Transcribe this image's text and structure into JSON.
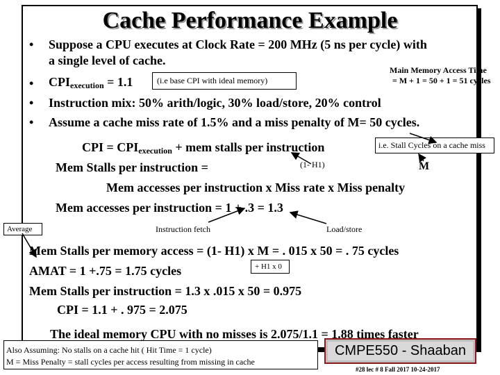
{
  "slide": {
    "title": "Cache Performance Example",
    "bullets": {
      "b1_line1": "Suppose a CPU executes at Clock Rate = 200 MHz (5 ns per cycle) with",
      "b1_line2": "a single level of cache.",
      "b2_cpi": "CPI",
      "b2_sub": "execution",
      "b2_value": "=  1.1",
      "b3": "Instruction mix:  50% arith/logic,  30% load/store, 20% control",
      "b4": "Assume a cache miss rate of 1.5% and a miss penalty of M= 50 cycles."
    },
    "bullet_char": "•",
    "note_ideal": "(i.e base CPI with ideal memory)",
    "main_memory_line1": "Main Memory Access Time",
    "main_memory_line2": "= M + 1 = 50 + 1 = 51 cycles",
    "cpi_eq": {
      "lhs": "CPI =  CPI",
      "sub": "execution",
      "rhs": " +   mem stalls per instruction"
    },
    "stall_note": "i.e. Stall Cycles on a cache miss",
    "h1_label": "(1- H1)",
    "m_label": "M",
    "mem_stalls_label": "Mem Stalls per instruction =",
    "mem_accesses_formula": "Mem accesses per instruction  x  Miss rate x Miss penalty",
    "mem_accesses_eq": "Mem accesses per instruction  =  1  +   .3   =  1.3",
    "average_label": "Average",
    "instruction_fetch": "Instruction fetch",
    "load_store": "Load/store",
    "stalls_per_access": "Mem Stalls per memory access  = (1- H1) x M = . 015 x 50  = . 75 cycles",
    "h1x0": "+ H1 x 0",
    "amat": "AMAT = 1 +.75 = 1.75 cycles",
    "stalls_per_instr": "Mem Stalls per instruction  =  1.3 x  .015 x 50  =   0.975",
    "cpi_result": "CPI =  1.1  +  . 975 =   2.075",
    "ideal_memory": "The ideal memory CPU with no misses is  2.075/1.1 =  1.88 times faster",
    "assume_line1": "Also Assuming:  No stalls on a cache hit ( Hit Time = 1 cycle)",
    "assume_line2": "M  =  Miss Penalty = stall cycles per access resulting from missing in cache",
    "badge": "CMPE550 - Shaaban",
    "footer": "#28   lec # 8   Fall 2017  10-24-2017"
  }
}
